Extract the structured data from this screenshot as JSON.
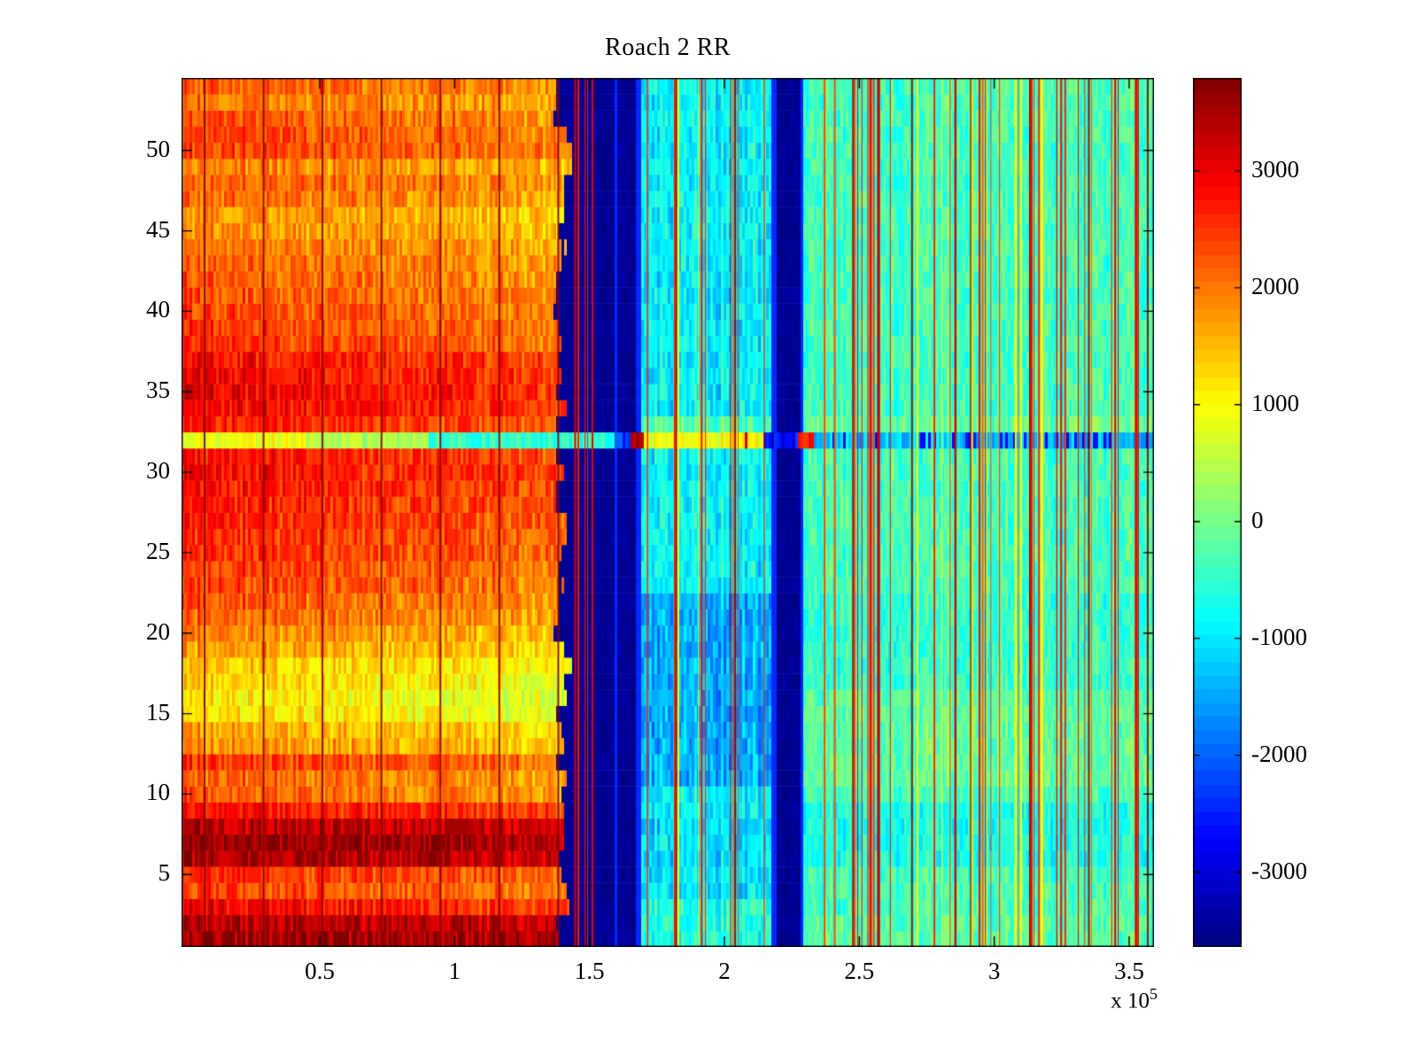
{
  "figure": {
    "background": "#ffffff"
  },
  "chart_data": {
    "type": "heatmap",
    "title": "Roach 2 RR",
    "colormap": "jet",
    "colormap_levels": 64,
    "seed": 1337,
    "x_axis": {
      "unit_multiplier_base": "x 10",
      "unit_multiplier_exp": "5",
      "lim": [
        -0.012,
        3.592
      ],
      "ticks": [
        0.5,
        1,
        1.5,
        2,
        2.5,
        3,
        3.5
      ],
      "tick_labels": [
        "0.5",
        "1",
        "1.5",
        "2",
        "2.5",
        "3",
        "3.5"
      ]
    },
    "y_axis": {
      "lim": [
        0.5,
        54.5
      ],
      "rows": 54,
      "ticks": [
        5,
        10,
        15,
        20,
        25,
        30,
        35,
        40,
        45,
        50
      ],
      "tick_labels": [
        "5",
        "10",
        "15",
        "20",
        "25",
        "30",
        "35",
        "40",
        "45",
        "50"
      ]
    },
    "colorbar": {
      "vmin": -3640,
      "vmax": 3795,
      "ticks": [
        3000,
        2000,
        1000,
        0,
        -1000,
        -2000,
        -3000
      ],
      "tick_labels": [
        "3000",
        "2000",
        "1000",
        "0",
        "-1000",
        "-2000",
        "-3000"
      ]
    },
    "warm_region": {
      "x0": -0.012,
      "x1": 1.4,
      "fade": 520,
      "noise": 420,
      "shared_amp": 160,
      "row_values_bottom_to_top": [
        3650,
        3500,
        2950,
        2500,
        2600,
        3500,
        3680,
        3420,
        2900,
        2250,
        2200,
        2550,
        1900,
        1750,
        1300,
        1250,
        1400,
        1500,
        1800,
        1950,
        2200,
        2300,
        2450,
        2500,
        2600,
        2650,
        2700,
        2760,
        2850,
        2900,
        2850,
        950,
        2750,
        2950,
        3050,
        2980,
        2880,
        2600,
        2500,
        2400,
        2350,
        2300,
        2250,
        2100,
        1950,
        1900,
        2150,
        2300,
        2050,
        2500,
        2450,
        2350,
        2100,
        2300
      ]
    },
    "cool_regions": [
      {
        "name": "cool1",
        "x0": 1.4,
        "x1": 1.592,
        "base": -750,
        "noise": 420,
        "shared_amp": 220,
        "row_offsets": [
          [
            13,
            22,
            -450
          ],
          [
            1,
            3,
            300
          ],
          [
            33,
            33,
            600
          ]
        ]
      },
      {
        "name": "band1",
        "x0": 1.592,
        "x1": 1.688,
        "base": -3480,
        "noise": 110,
        "shared_amp": 40,
        "edge_value": -2450,
        "edge_width": 0.012,
        "row_offsets": []
      },
      {
        "name": "cool2",
        "x0": 1.688,
        "x1": 2.178,
        "base": -950,
        "noise": 450,
        "shared_amp": 260,
        "row_offsets": [
          [
            11,
            22,
            -480
          ],
          [
            1,
            3,
            350
          ],
          [
            4,
            8,
            -100
          ],
          [
            33,
            33,
            650
          ],
          [
            23,
            31,
            80
          ],
          [
            44,
            54,
            60
          ]
        ]
      },
      {
        "name": "band2",
        "x0": 2.178,
        "x1": 2.292,
        "base": -3480,
        "noise": 110,
        "shared_amp": 40,
        "edge_value": -2450,
        "edge_width": 0.012,
        "row_offsets": []
      },
      {
        "name": "right",
        "x0": 2.292,
        "x1": 3.592,
        "base": -350,
        "noise": 380,
        "shared_amp": 200,
        "row_offsets": [
          [
            6,
            9,
            -320
          ],
          [
            11,
            16,
            200
          ],
          [
            33,
            33,
            250
          ],
          [
            1,
            2,
            150
          ],
          [
            17,
            22,
            -120
          ]
        ]
      }
    ],
    "anomalous_row": {
      "row": 32,
      "segments": [
        {
          "x0": -0.012,
          "x1": 0.45,
          "v": 950,
          "noise": 300
        },
        {
          "x0": 0.45,
          "x1": 0.9,
          "v": 430,
          "noise": 320
        },
        {
          "x0": 0.9,
          "x1": 1.592,
          "v": -480,
          "noise": 380
        },
        {
          "x0": 1.592,
          "x1": 1.655,
          "v": -2250,
          "noise": 450
        },
        {
          "x0": 1.655,
          "x1": 1.705,
          "v": 3450,
          "noise": 200
        },
        {
          "x0": 1.705,
          "x1": 2.145,
          "v": 900,
          "noise": 280,
          "spike_v": 3300,
          "spike_p": 0.05
        },
        {
          "x0": 2.145,
          "x1": 2.268,
          "v": -2650,
          "noise": 500
        },
        {
          "x0": 2.268,
          "x1": 2.33,
          "v": 2750,
          "noise": 250
        },
        {
          "x0": 2.33,
          "x1": 3.592,
          "v": -1250,
          "noise": 450,
          "patch_v": -2750,
          "patch_p": 0.22
        }
      ]
    },
    "dark_lines": {
      "start": 0.07,
      "period": 0.2185,
      "value": 3790,
      "width": 2,
      "count": 17
    },
    "spikes": {
      "right": {
        "count": 40,
        "x0": 2.31,
        "x1": 3.58,
        "vmin": 2100,
        "vmax": 3400
      },
      "cool2": {
        "count": 10,
        "x0": 1.705,
        "x1": 2.165,
        "vmin": 2200,
        "vmax": 3300
      },
      "cool1": {
        "count": 5,
        "x0": 1.415,
        "x1": 1.575,
        "vmin": 2300,
        "vmax": 3200
      },
      "yellow": {
        "count": 12,
        "x0": 1.7,
        "x1": 3.55,
        "vmin": 850,
        "vmax": 1200
      }
    }
  }
}
